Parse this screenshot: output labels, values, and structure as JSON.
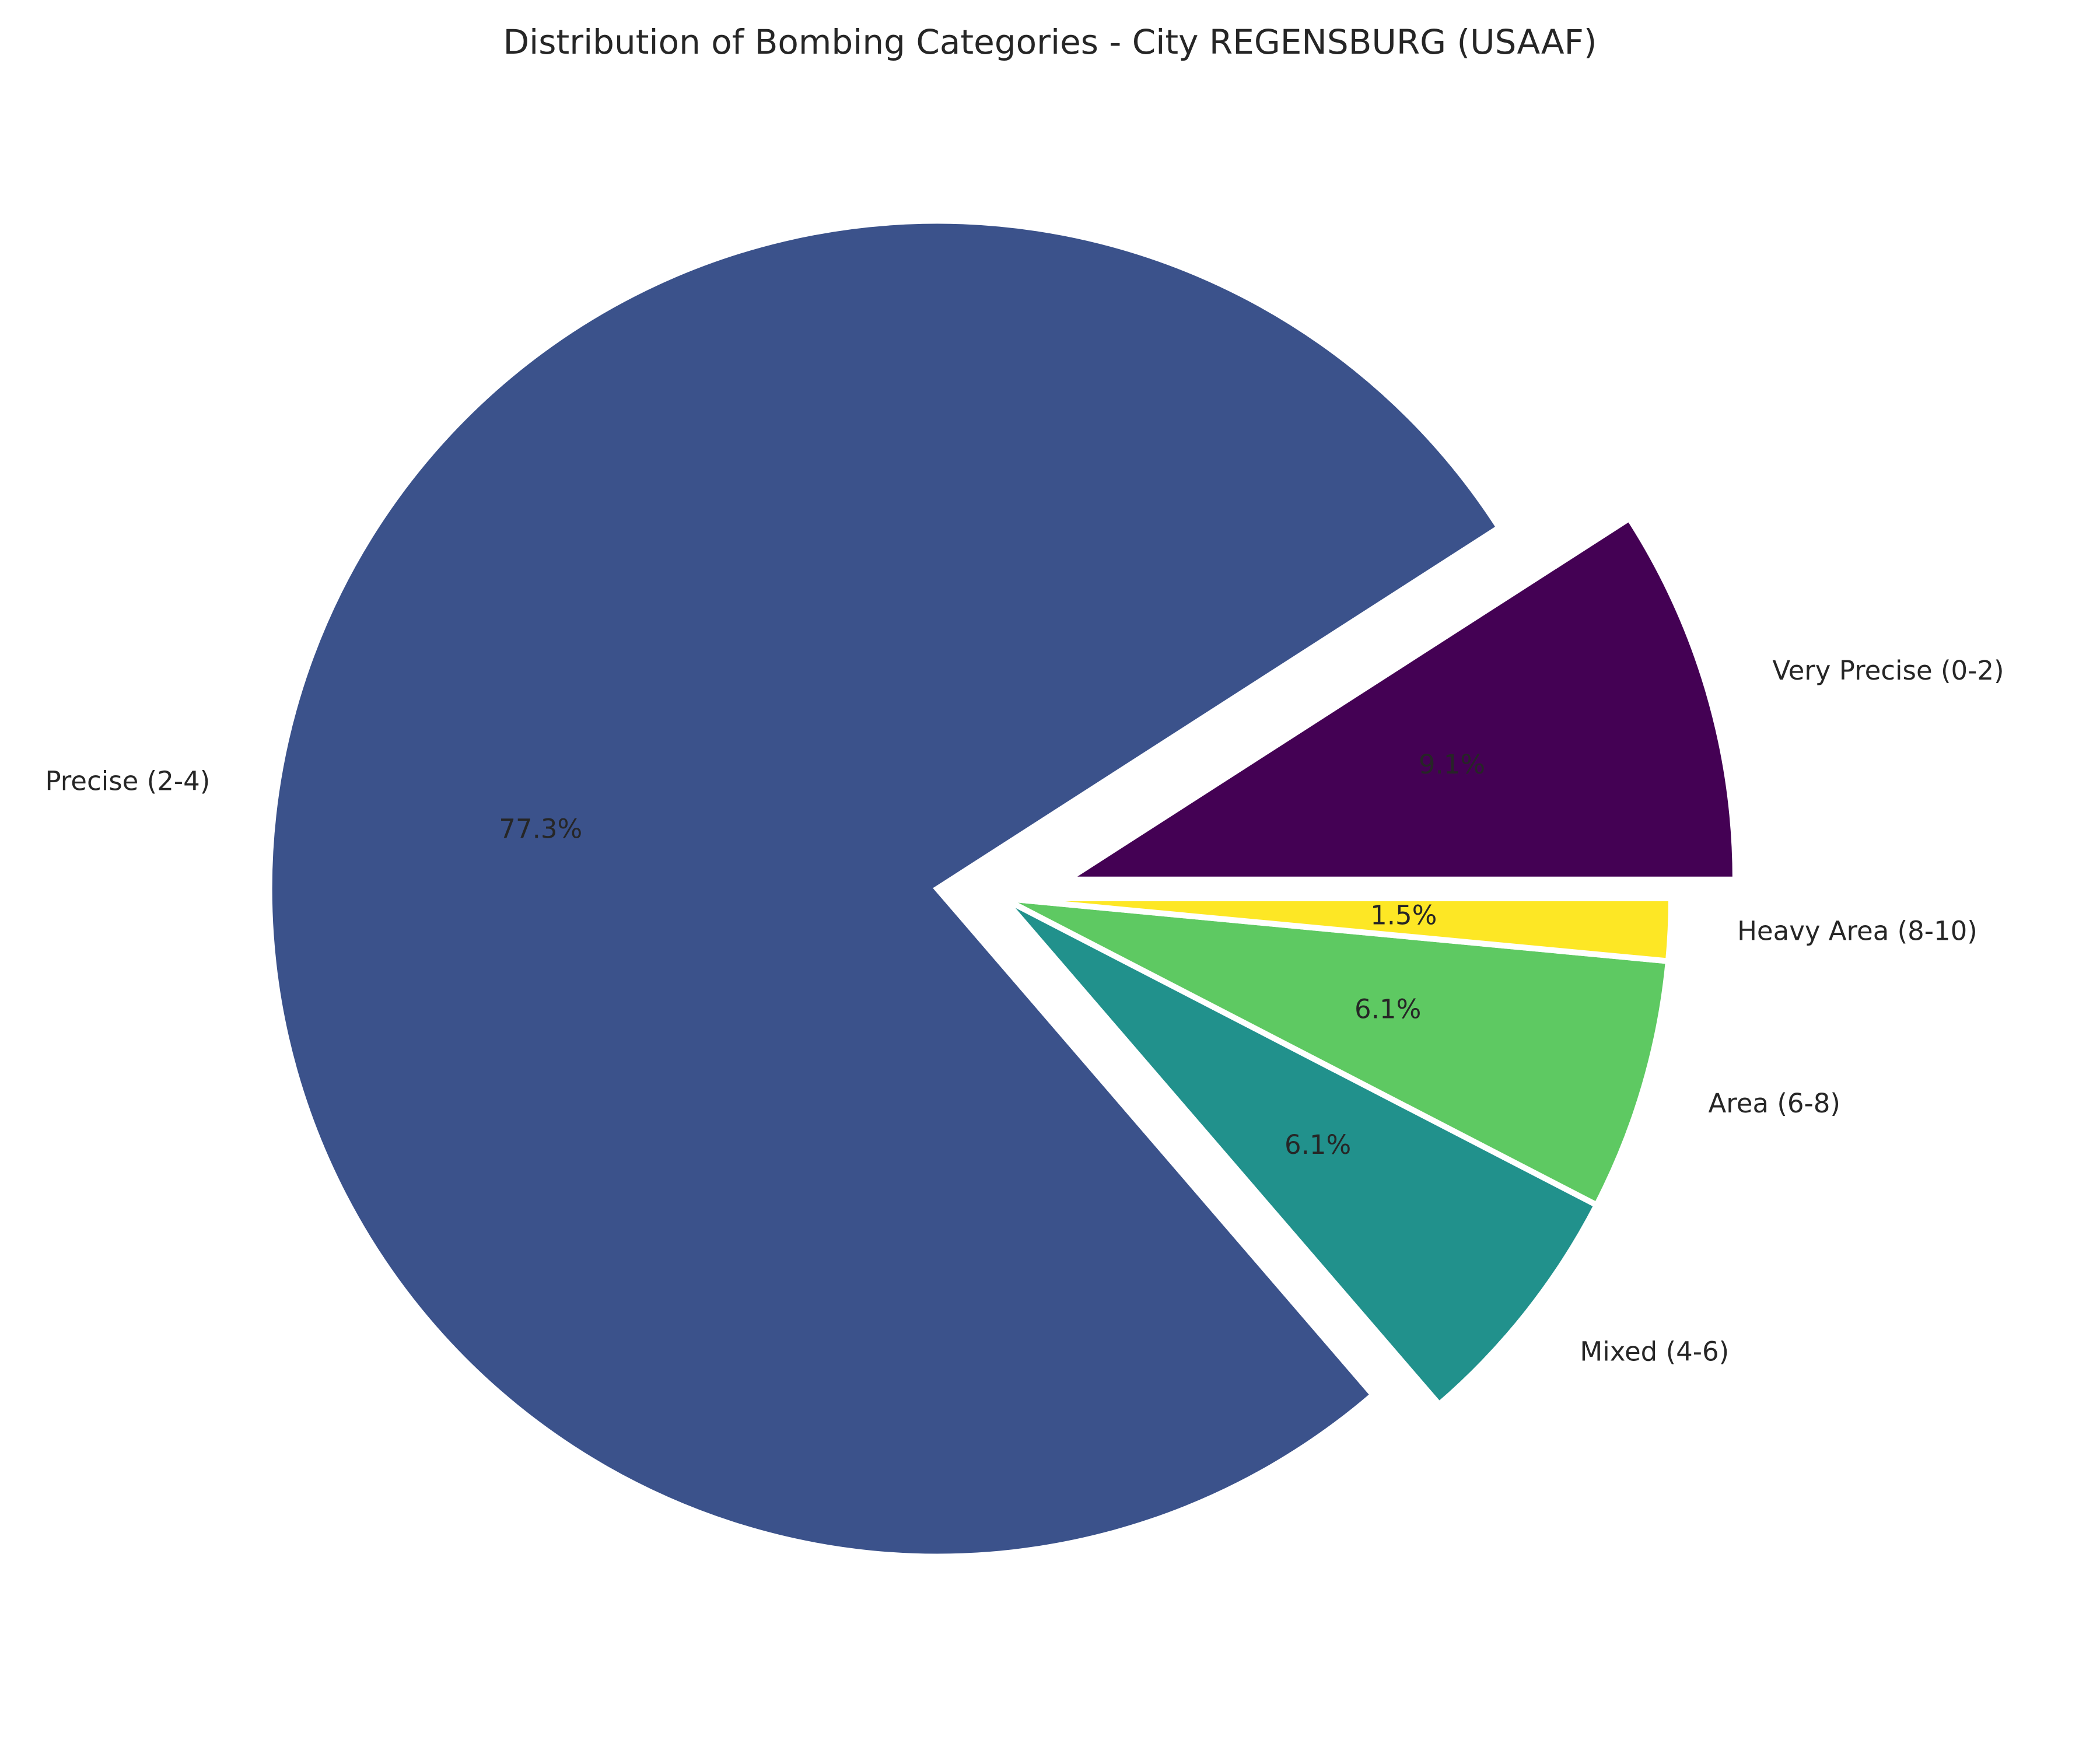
{
  "chart_data": {
    "type": "pie",
    "title": "Distribution of Bombing Categories - City REGENSBURG (USAAF)",
    "categories": [
      "Very Precise (0-2)",
      "Precise (2-4)",
      "Mixed (4-6)",
      "Area (6-8)",
      "Heavy Area (8-10)"
    ],
    "values": [
      9.1,
      77.3,
      6.1,
      6.1,
      1.5
    ],
    "percent_labels": [
      "9.1%",
      "77.3%",
      "6.1%",
      "6.1%",
      "1.5%"
    ],
    "colors": [
      "#440154",
      "#3b528b",
      "#21918c",
      "#5ec962",
      "#fde725"
    ],
    "exploded": [
      "Very Precise (0-2)",
      "Precise (2-4)"
    ],
    "start_angle_deg": 0,
    "direction": "counterclockwise",
    "legend": "none"
  }
}
